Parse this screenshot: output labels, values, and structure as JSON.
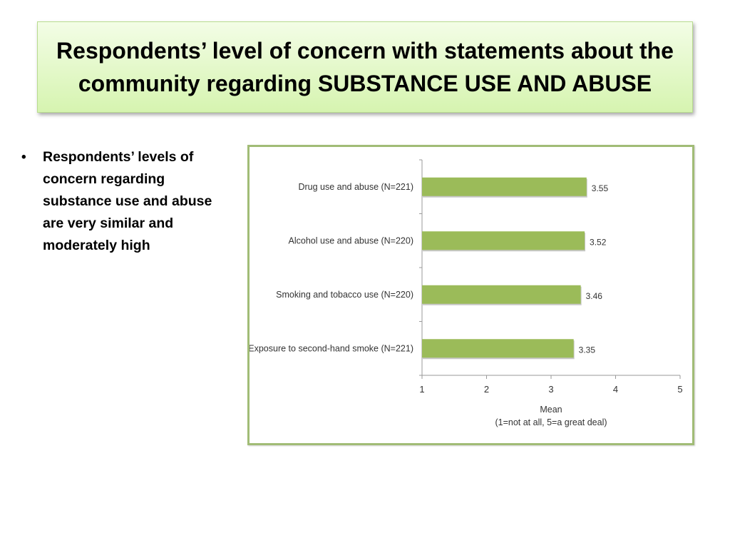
{
  "slide": {
    "title": "Respondents’ level of concern with statements about the community regarding SUBSTANCE USE AND ABUSE",
    "bullets": [
      "Respondents’ levels of concern regarding substance use and abuse are very similar and moderately high"
    ]
  },
  "chart_data": {
    "type": "bar",
    "orientation": "horizontal",
    "categories": [
      "Drug use and abuse (N=221)",
      "Alcohol use and abuse (N=220)",
      "Smoking and tobacco use (N=220)",
      "Exposure to second-hand smoke (N=221)"
    ],
    "values": [
      3.55,
      3.52,
      3.46,
      3.35
    ],
    "value_labels": [
      "3.55",
      "3.52",
      "3.46",
      "3.35"
    ],
    "xlabel": "Mean",
    "xlabel_sub": "(1=not at all, 5=a great deal)",
    "xlim": [
      1,
      5
    ],
    "xticks": [
      "1",
      "2",
      "3",
      "4",
      "5"
    ],
    "bar_color": "#9bbb59",
    "grid": false,
    "legend": "none"
  }
}
